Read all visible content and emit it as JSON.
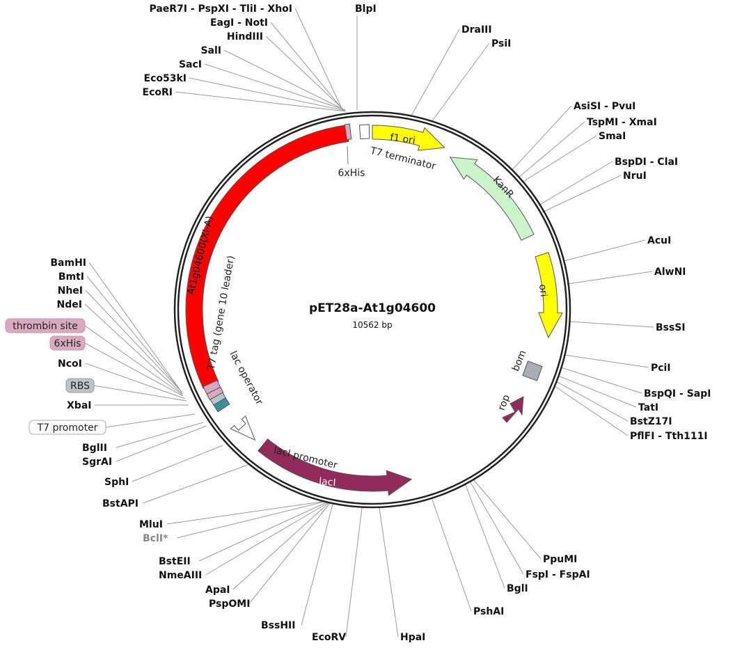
{
  "plasmid": {
    "name": "pET28a-At1g04600",
    "length": "10562 bp"
  },
  "colors": {
    "insert": "#ff0000",
    "f1_ori": "#ffff00",
    "kanr": "#ccf5cc",
    "ori": "#ffff00",
    "laci": "#922a5c",
    "rop": "#922a5c",
    "bom": "#a9adb5",
    "tag_pink": "#d9a9c0",
    "teal": "#3a8f9e",
    "line": "#999999"
  },
  "features": {
    "insert": "At1g04600(XI-A)",
    "f1_ori": "f1 ori",
    "kanr": "KanR",
    "ori": "ori",
    "bom": "bom",
    "rop": "rop",
    "laci": "lacI",
    "laci_promoter": "lacI promoter",
    "lac_operator": "lac operator",
    "t7_tag": "T7 tag (gene 10 leader)",
    "his_top": "6xHis",
    "t7_terminator": "T7 terminator"
  },
  "enzymes": [
    "PaeR7I - PspXI - TliI - XhoI",
    "EagI - NotI",
    "HindIII",
    "SalI",
    "SacI",
    "Eco53kI",
    "EcoRI",
    "BlpI",
    "DraIII",
    "PsiI",
    "AsiSI - PvuI",
    "TspMI - XmaI",
    "SmaI",
    "BspDI - ClaI",
    "NruI",
    "AcuI",
    "AlwNI",
    "BssSI",
    "PciI",
    "BspQI - SapI",
    "TatI",
    "BstZ17I",
    "PflFI - Tth111I",
    "PpuMI",
    "FspI - FspAI",
    "BglI",
    "PshAI",
    "HpaI",
    "EcoRV",
    "BssHII",
    "PspOMI",
    "ApaI",
    "NmeAIII",
    "BstEII",
    "BclI*",
    "MluI",
    "BstAPI",
    "SphI",
    "SgrAI",
    "BglII",
    "XbaI",
    "NcoI",
    "NdeI",
    "NheI",
    "BmtI",
    "BamHI"
  ],
  "boxed_labels": [
    "thrombin site",
    "6xHis",
    "RBS",
    "T7 promoter"
  ]
}
